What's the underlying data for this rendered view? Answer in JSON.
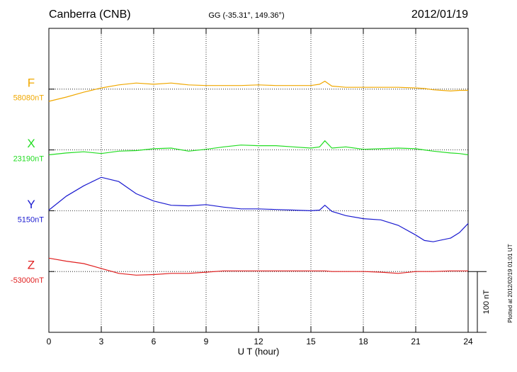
{
  "chart_data": {
    "type": "line",
    "title": "Canberra (CNB)",
    "subtitle": "GG (-35.31°, 149.36°)",
    "date": "2012/01/19",
    "x_label": "U T (hour)",
    "footnote": "Plotted at 2012/02/19 01:01 UT",
    "scale_bar": {
      "value": 100,
      "label": "100 nT"
    },
    "xlim": [
      0,
      24
    ],
    "xticks": [
      0,
      3,
      6,
      9,
      12,
      15,
      18,
      21,
      24
    ],
    "grid": true,
    "x": [
      0,
      1,
      2,
      3,
      4,
      5,
      6,
      7,
      8,
      9,
      10,
      11,
      12,
      13,
      14,
      15,
      15.5,
      15.8,
      16.2,
      17,
      18,
      19,
      20,
      21,
      21.5,
      22,
      23,
      23.5,
      24
    ],
    "series": [
      {
        "name": "F",
        "color": "#f0a800",
        "baseline": 58080,
        "baseline_label": "58080nT",
        "values": [
          58060,
          58067,
          58075,
          58082,
          58087,
          58090,
          58088,
          58090,
          58087,
          58086,
          58086,
          58086,
          58087,
          58086,
          58086,
          58086,
          58088,
          58093,
          58085,
          58083,
          58083,
          58083,
          58083,
          58082,
          58081,
          58079,
          58077,
          58078,
          58078
        ]
      },
      {
        "name": "X",
        "color": "#22dd22",
        "baseline": 23190,
        "baseline_label": "23190nT",
        "values": [
          23182,
          23185,
          23187,
          23184,
          23188,
          23189,
          23192,
          23193,
          23188,
          23191,
          23195,
          23198,
          23197,
          23197,
          23195,
          23193,
          23195,
          23205,
          23193,
          23195,
          23191,
          23192,
          23193,
          23192,
          23190,
          23188,
          23185,
          23184,
          23182
        ]
      },
      {
        "name": "Y",
        "color": "#1a1ad0",
        "baseline": 5150,
        "baseline_label": "5150nT",
        "values": [
          5151,
          5174,
          5191,
          5205,
          5198,
          5178,
          5166,
          5159,
          5158,
          5160,
          5156,
          5153,
          5153,
          5152,
          5151,
          5150,
          5151,
          5159,
          5149,
          5142,
          5137,
          5135,
          5126,
          5110,
          5101,
          5099,
          5105,
          5114,
          5129
        ]
      },
      {
        "name": "Z",
        "color": "#e02020",
        "baseline": -53000,
        "baseline_label": "-53000nT",
        "values": [
          -52978,
          -52983,
          -52987,
          -52995,
          -53003,
          -53006,
          -53005,
          -53003,
          -53003,
          -53001,
          -52999,
          -52999,
          -52999,
          -52999,
          -52999,
          -52999,
          -52999,
          -52999,
          -53000,
          -53000,
          -53000,
          -53001,
          -53003,
          -53000,
          -53000,
          -53000,
          -52999,
          -52999,
          -52999
        ]
      }
    ]
  }
}
